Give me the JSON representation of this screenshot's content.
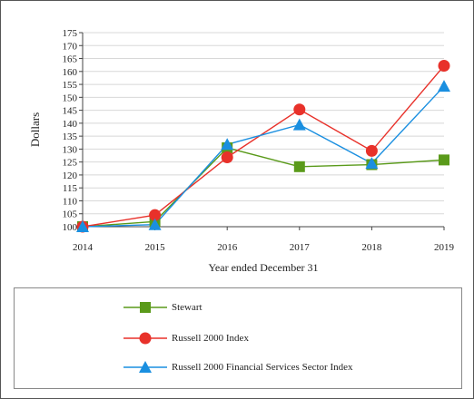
{
  "chart_data": {
    "type": "line",
    "xlabel": "Year ended December 31",
    "ylabel": "Dollars",
    "categories": [
      "2014",
      "2015",
      "2016",
      "2017",
      "2018",
      "2019"
    ],
    "ylim": [
      100,
      175
    ],
    "yticks": [
      100,
      105,
      110,
      115,
      120,
      125,
      130,
      135,
      140,
      145,
      150,
      155,
      160,
      165,
      170,
      175
    ],
    "grid": true,
    "legend_position": "bottom",
    "series": [
      {
        "name": "Stewart",
        "marker": "square",
        "color": "#5a9a1a",
        "values": [
          100,
          102,
          130.5,
          123.2,
          124,
          125.8
        ]
      },
      {
        "name": "Russell 2000 Index",
        "marker": "circle",
        "color": "#e8312a",
        "values": [
          100,
          104.5,
          126.8,
          145.3,
          129.3,
          162.2
        ]
      },
      {
        "name": "Russell 2000 Financial Services Sector Index",
        "marker": "triangle",
        "color": "#1a8fe0",
        "values": [
          100,
          100.8,
          131.8,
          139.4,
          124.5,
          154.3
        ]
      }
    ]
  }
}
